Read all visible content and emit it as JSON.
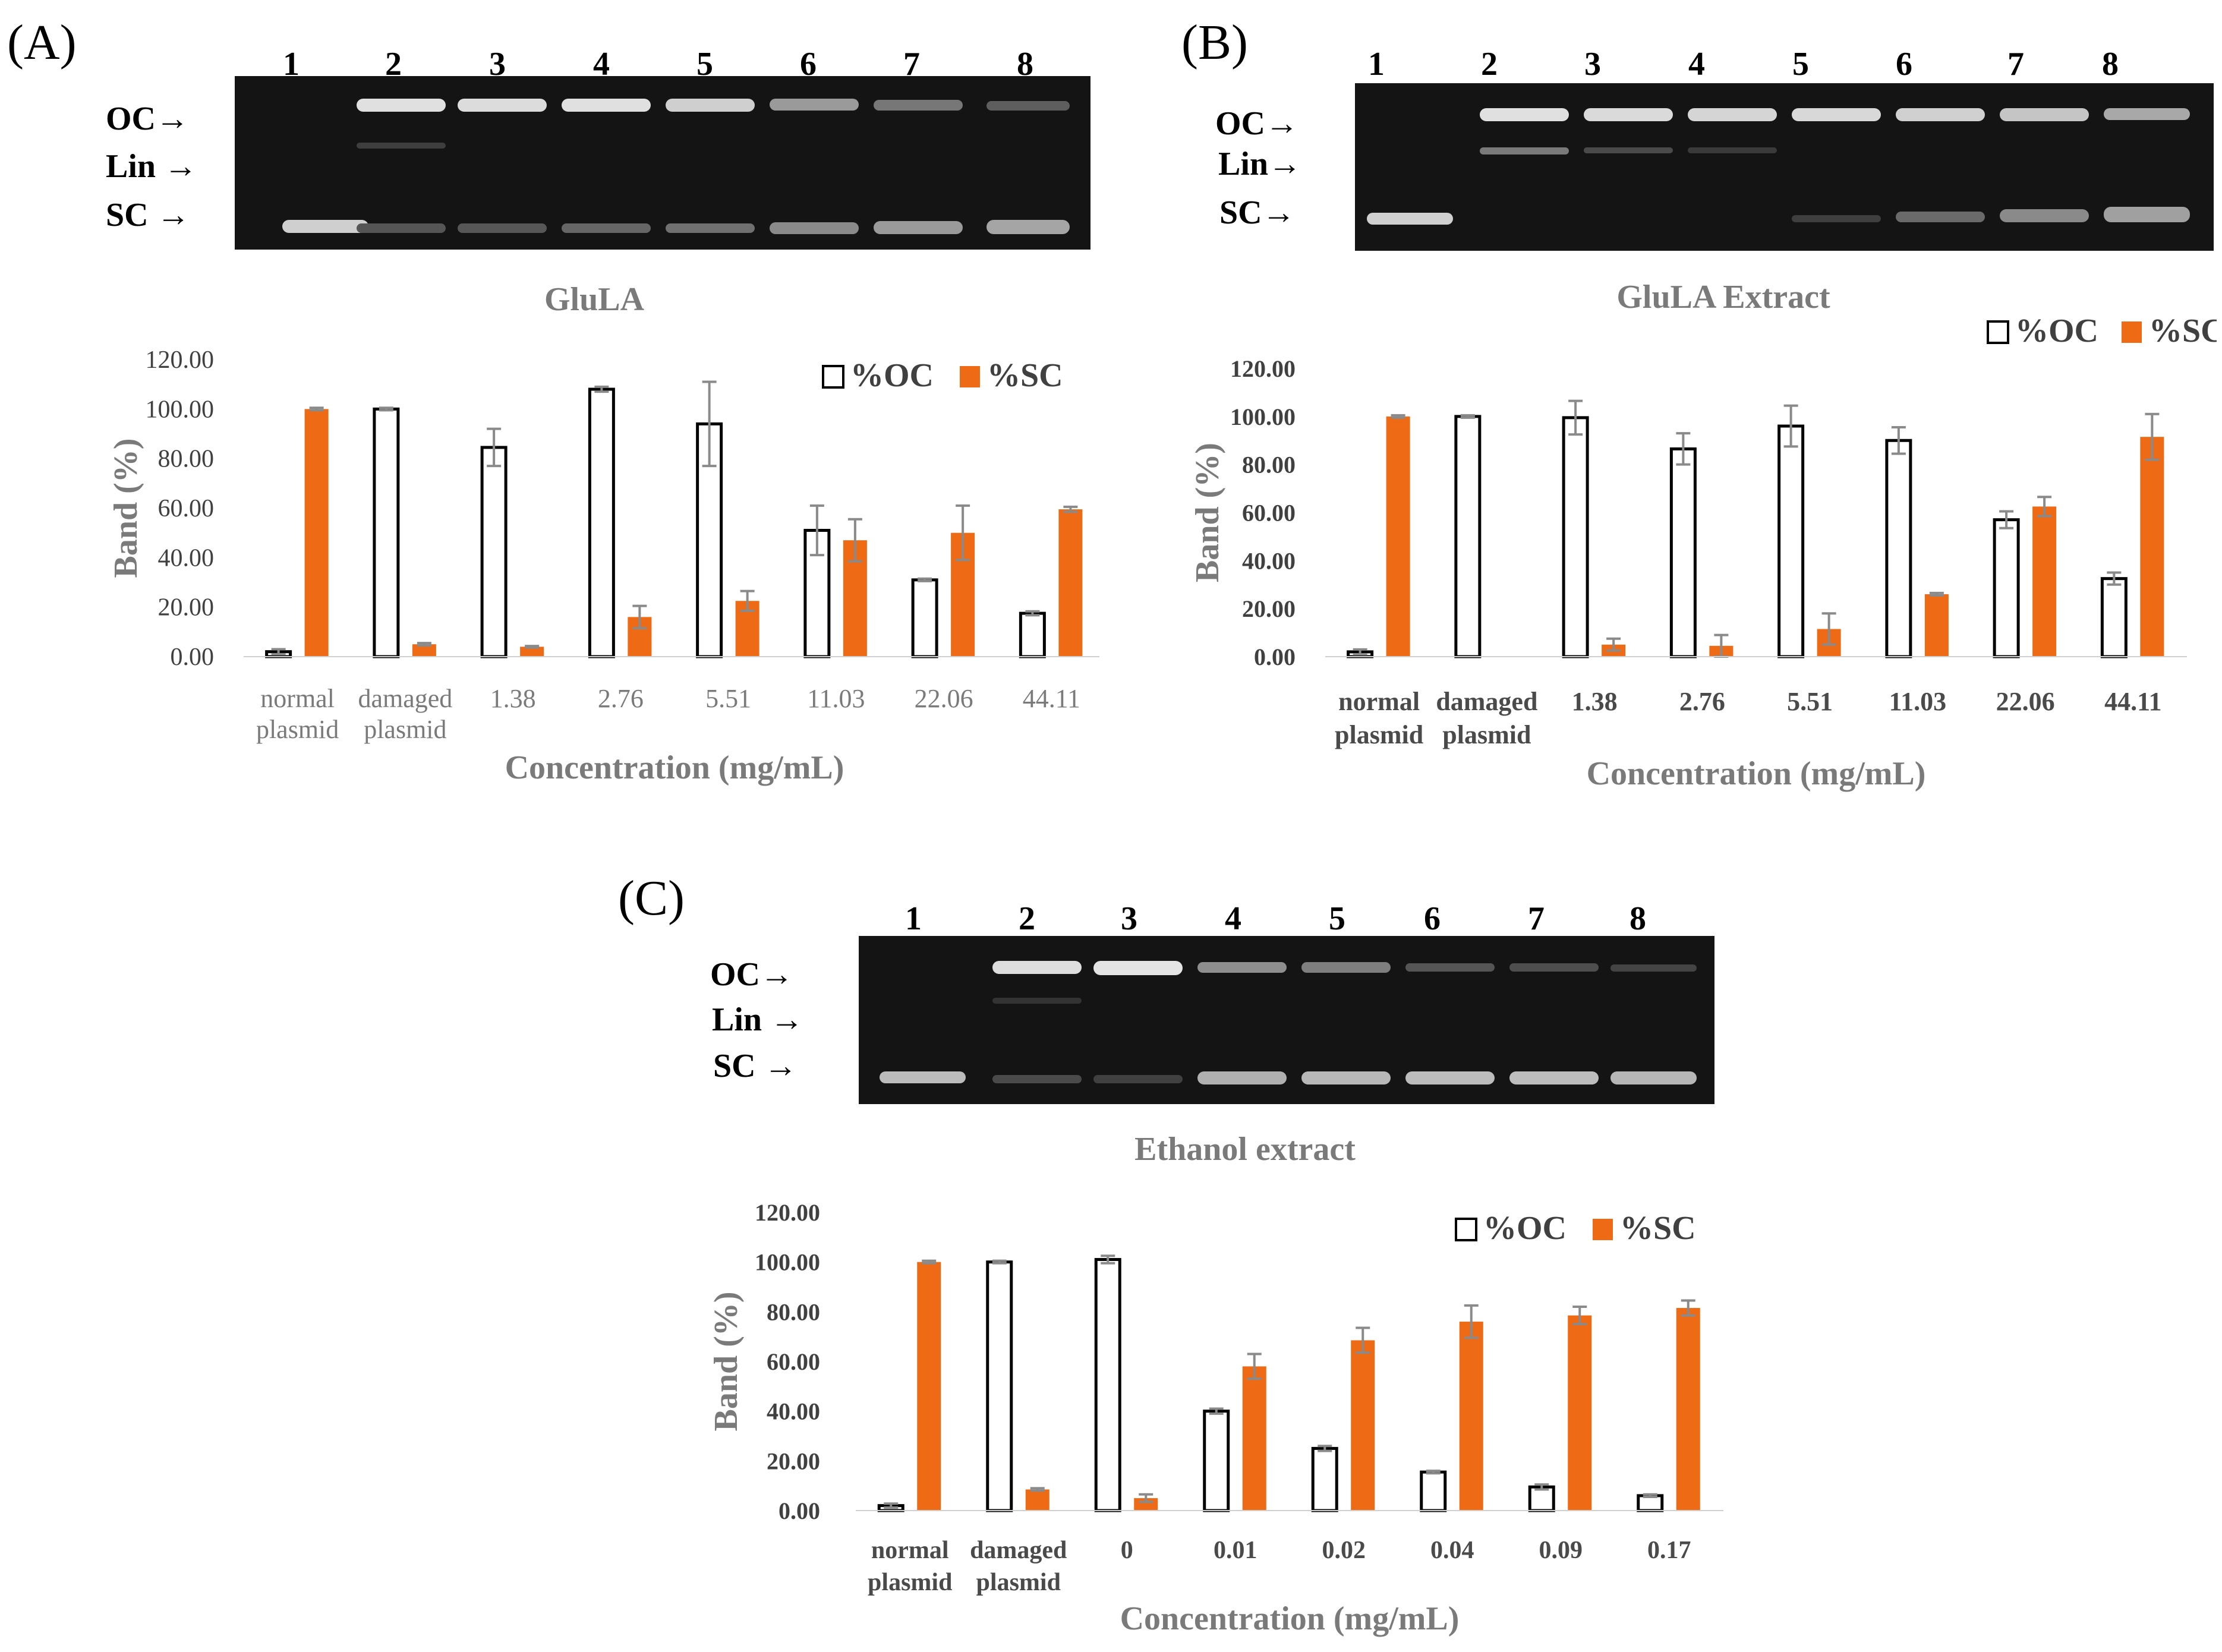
{
  "panels": [
    {
      "label": "(A)",
      "lanes": [
        "1",
        "2",
        "3",
        "4",
        "5",
        "6",
        "7",
        "8"
      ],
      "band_labels": [
        "OC→",
        "Lin →",
        "SC →"
      ]
    },
    {
      "label": "(B)",
      "lanes": [
        "1",
        "2",
        "3",
        "4",
        "5",
        "6",
        "7",
        "8"
      ],
      "band_labels": [
        "OC→",
        "Lin→",
        "SC→"
      ]
    },
    {
      "label": "(C)",
      "lanes": [
        "1",
        "2",
        "3",
        "4",
        "5",
        "6",
        "7",
        "8"
      ],
      "band_labels": [
        "OC→",
        "Lin →",
        "SC →"
      ]
    }
  ],
  "colors": {
    "sc": "#EE6A14",
    "oc_fill": "#ffffff",
    "oc_stroke": "#000000",
    "axis_text": "#7a7a7a",
    "error_bar": "#8a8a8a",
    "gel": "#141414",
    "gel_band": "#d9d9d9"
  },
  "chart_data": [
    {
      "type": "bar",
      "title": "GluLA",
      "categories": [
        "normal\nplasmid",
        "damaged\nplasmid",
        "1.38",
        "2.76",
        "5.51",
        "11.03",
        "22.06",
        "44.11"
      ],
      "series": [
        {
          "name": "%OC",
          "values": [
            2,
            100,
            84.5,
            108,
            94,
            51,
            31,
            17.5
          ],
          "errors": [
            1,
            0.5,
            7.5,
            1,
            17,
            10,
            0.5,
            0.8
          ]
        },
        {
          "name": "%SC",
          "values": [
            100,
            5,
            4,
            16,
            22.5,
            47,
            50,
            59.5
          ],
          "errors": [
            0.5,
            0.5,
            0.3,
            4.5,
            4,
            8.5,
            11,
            1
          ]
        }
      ],
      "xlabel": "Concentration (mg/mL)",
      "ylabel": "Band (%)",
      "ylim": [
        0,
        120
      ],
      "yticks": [
        "0.00",
        "20.00",
        "40.00",
        "60.00",
        "80.00",
        "100.00",
        "120.00"
      ],
      "legend": "top-right",
      "tick_bold": false
    },
    {
      "type": "bar",
      "title": "GluLA Extract",
      "categories": [
        "normal\nplasmid",
        "damaged\nplasmid",
        "1.38",
        "2.76",
        "5.51",
        "11.03",
        "22.06",
        "44.11"
      ],
      "series": [
        {
          "name": "%OC",
          "values": [
            2,
            100,
            99.5,
            86.5,
            96,
            90,
            57,
            32.5
          ],
          "errors": [
            1,
            0.5,
            7,
            6.5,
            8.5,
            5.5,
            3.5,
            2.5
          ]
        },
        {
          "name": "%SC",
          "values": [
            100,
            0,
            5,
            4.5,
            11.5,
            26,
            62.5,
            91.5
          ],
          "errors": [
            0.5,
            0,
            2.5,
            4.5,
            6.5,
            0.5,
            4,
            9.5
          ]
        }
      ],
      "xlabel": "Concentration (mg/mL)",
      "ylabel": "Band (%)",
      "ylim": [
        0,
        120
      ],
      "yticks": [
        "0.00",
        "20.00",
        "40.00",
        "60.00",
        "80.00",
        "100.00",
        "120.00"
      ],
      "legend": "top-right",
      "tick_bold": true
    },
    {
      "type": "bar",
      "title": "Ethanol extract",
      "categories": [
        "normal\nplasmid",
        "damaged\nplasmid",
        "0",
        "0.01",
        "0.02",
        "0.04",
        "0.09",
        "0.17"
      ],
      "series": [
        {
          "name": "%OC",
          "values": [
            2,
            100,
            101,
            40,
            25,
            15.5,
            9.5,
            6
          ],
          "errors": [
            0.8,
            0.5,
            1.5,
            1,
            1,
            0.5,
            1,
            0.5
          ]
        },
        {
          "name": "%SC",
          "values": [
            100,
            8.5,
            5,
            58,
            68.5,
            76,
            78.5,
            81.5
          ],
          "errors": [
            0.5,
            0.5,
            1.5,
            5,
            5,
            6.5,
            3.5,
            3
          ]
        }
      ],
      "xlabel": "Concentration (mg/mL)",
      "ylabel": "Band (%)",
      "ylim": [
        0,
        120
      ],
      "yticks": [
        "0.00",
        "20.00",
        "40.00",
        "60.00",
        "80.00",
        "100.00",
        "120.00"
      ],
      "legend": "top-right",
      "tick_bold": true
    }
  ]
}
